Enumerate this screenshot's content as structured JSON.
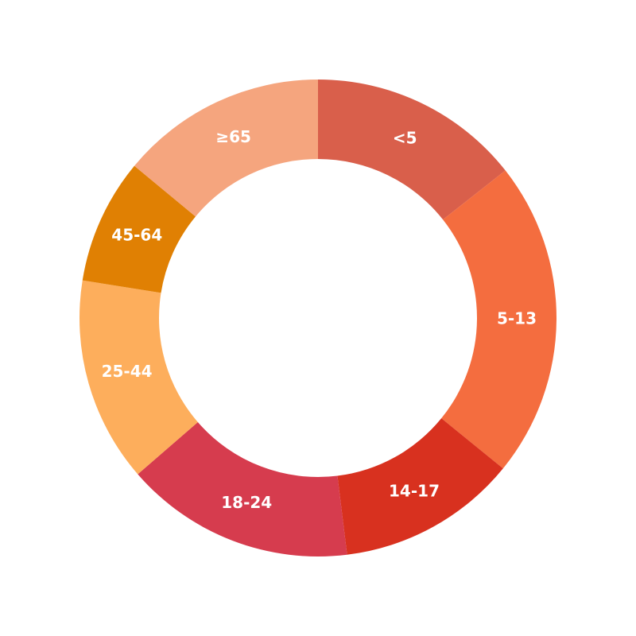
{
  "chart_data": {
    "type": "pie",
    "donut": true,
    "title": "",
    "legend": "none",
    "categories": [
      "<5",
      "5-13",
      "14-17",
      "18-24",
      "25-44",
      "45-64",
      "≥65"
    ],
    "values": [
      14.4,
      21.5,
      12.2,
      15.6,
      13.9,
      8.5,
      14.0
    ],
    "colors": [
      "#d95f4b",
      "#f46d3f",
      "#d8311f",
      "#d63c4e",
      "#fdae5c",
      "#e08003",
      "#f5a57e"
    ]
  }
}
